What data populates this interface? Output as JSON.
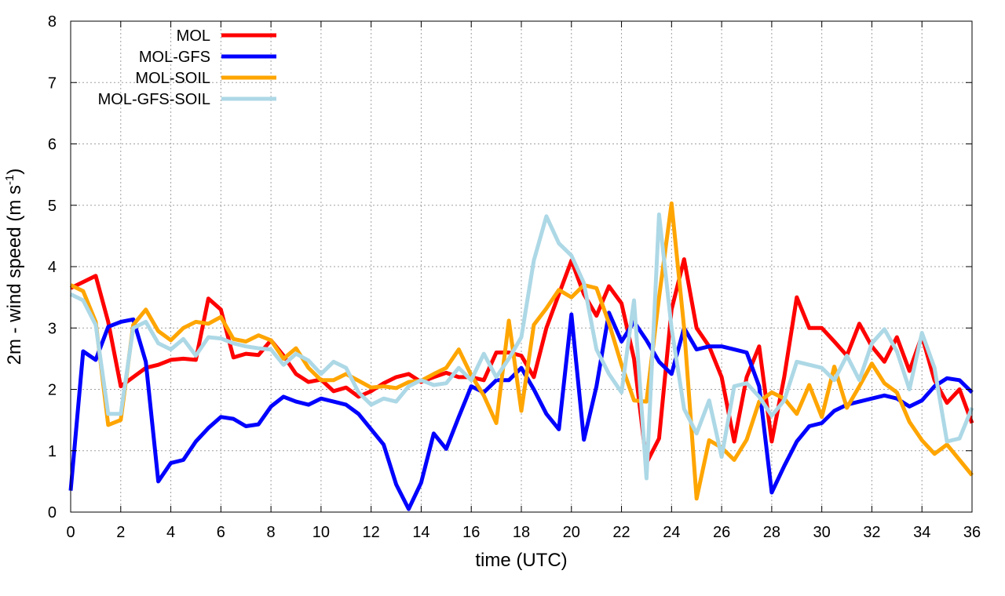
{
  "chart_data": {
    "type": "line",
    "title": "",
    "xlabel": "time (UTC)",
    "ylabel": {
      "prefix": "2m - wind speed  (m s",
      "sup": "-1",
      "suffix": ")"
    },
    "xlim": [
      0,
      36
    ],
    "ylim": [
      0,
      8
    ],
    "xticks": [
      0,
      2,
      4,
      6,
      8,
      10,
      12,
      14,
      16,
      18,
      20,
      22,
      24,
      26,
      28,
      30,
      32,
      34,
      36
    ],
    "yticks": [
      0,
      1,
      2,
      3,
      4,
      5,
      6,
      7,
      8
    ],
    "grid": true,
    "legend_position": "top-left",
    "x": [
      0,
      0.5,
      1,
      1.5,
      2,
      2.5,
      3,
      3.5,
      4,
      4.5,
      5,
      5.5,
      6,
      6.5,
      7,
      7.5,
      8,
      8.5,
      9,
      9.5,
      10,
      10.5,
      11,
      11.5,
      12,
      12.5,
      13,
      13.5,
      14,
      14.5,
      15,
      15.5,
      16,
      16.5,
      17,
      17.5,
      18,
      18.5,
      19,
      19.5,
      20,
      20.5,
      21,
      21.5,
      22,
      22.5,
      23,
      23.5,
      24,
      24.5,
      25,
      25.5,
      26,
      26.5,
      27,
      27.5,
      28,
      28.5,
      29,
      29.5,
      30,
      30.5,
      31,
      31.5,
      32,
      32.5,
      33,
      33.5,
      34,
      34.5,
      35,
      35.5,
      36
    ],
    "series": [
      {
        "name": "MOL",
        "color": "#ff0000",
        "values": [
          3.65,
          3.75,
          3.85,
          3.1,
          2.05,
          2.2,
          2.35,
          2.4,
          2.48,
          2.5,
          2.48,
          3.48,
          3.3,
          2.52,
          2.58,
          2.56,
          2.8,
          2.55,
          2.25,
          2.12,
          2.16,
          1.97,
          2.03,
          1.88,
          1.97,
          2.1,
          2.2,
          2.25,
          2.12,
          2.2,
          2.27,
          2.2,
          2.2,
          2.15,
          2.6,
          2.6,
          2.55,
          2.2,
          3.0,
          3.55,
          4.1,
          3.55,
          3.2,
          3.68,
          3.4,
          2.5,
          0.8,
          1.2,
          3.3,
          4.12,
          3.0,
          2.7,
          2.2,
          1.15,
          2.2,
          2.7,
          1.15,
          2.2,
          3.5,
          3.0,
          3.0,
          2.78,
          2.55,
          3.07,
          2.7,
          2.45,
          2.85,
          2.3,
          2.87,
          2.15,
          1.78,
          2.0,
          1.45
        ]
      },
      {
        "name": "MOL-GFS",
        "color": "#0000ff",
        "values": [
          0.35,
          2.62,
          2.48,
          3.02,
          3.1,
          3.14,
          2.45,
          0.5,
          0.8,
          0.85,
          1.15,
          1.37,
          1.55,
          1.52,
          1.4,
          1.43,
          1.72,
          1.88,
          1.8,
          1.75,
          1.85,
          1.8,
          1.75,
          1.6,
          1.35,
          1.1,
          0.45,
          0.05,
          0.48,
          1.28,
          1.03,
          1.55,
          2.05,
          1.95,
          2.15,
          2.15,
          2.35,
          2.0,
          1.6,
          1.35,
          3.22,
          1.18,
          2.05,
          3.25,
          2.78,
          3.1,
          2.8,
          2.45,
          2.25,
          3.0,
          2.65,
          2.7,
          2.7,
          2.65,
          2.6,
          2.05,
          0.32,
          0.75,
          1.15,
          1.4,
          1.45,
          1.65,
          1.75,
          1.8,
          1.85,
          1.9,
          1.85,
          1.72,
          1.82,
          2.05,
          2.18,
          2.15,
          1.95
        ]
      },
      {
        "name": "MOL-SOIL",
        "color": "#ffa500",
        "values": [
          3.7,
          3.6,
          3.1,
          1.42,
          1.5,
          3.05,
          3.3,
          2.95,
          2.8,
          3.0,
          3.1,
          3.07,
          3.18,
          2.82,
          2.78,
          2.88,
          2.8,
          2.5,
          2.67,
          2.35,
          2.15,
          2.15,
          2.25,
          2.14,
          2.03,
          2.05,
          2.02,
          2.12,
          2.14,
          2.25,
          2.35,
          2.65,
          2.23,
          1.9,
          1.45,
          3.12,
          1.65,
          3.05,
          3.32,
          3.62,
          3.5,
          3.7,
          3.65,
          3.08,
          2.4,
          1.82,
          1.8,
          3.5,
          5.03,
          3.0,
          0.22,
          1.17,
          1.05,
          0.85,
          1.18,
          1.8,
          1.95,
          1.85,
          1.6,
          2.07,
          1.55,
          2.37,
          1.7,
          2.05,
          2.42,
          2.1,
          1.95,
          1.47,
          1.17,
          0.95,
          1.1,
          0.85,
          0.6
        ]
      },
      {
        "name": "MOL-GFS-SOIL",
        "color": "#add8e6",
        "values": [
          3.55,
          3.45,
          3.05,
          1.6,
          1.6,
          3.0,
          3.1,
          2.75,
          2.65,
          2.82,
          2.55,
          2.85,
          2.83,
          2.75,
          2.7,
          2.67,
          2.65,
          2.4,
          2.58,
          2.47,
          2.25,
          2.45,
          2.35,
          1.95,
          1.75,
          1.85,
          1.8,
          2.05,
          2.15,
          2.07,
          2.1,
          2.35,
          2.15,
          2.58,
          2.2,
          2.5,
          2.85,
          4.1,
          4.82,
          4.38,
          4.18,
          3.73,
          2.65,
          2.25,
          1.95,
          3.45,
          0.55,
          4.85,
          3.0,
          1.68,
          1.28,
          1.82,
          0.9,
          2.05,
          2.1,
          1.88,
          1.57,
          1.82,
          2.45,
          2.4,
          2.35,
          2.15,
          2.55,
          2.15,
          2.75,
          2.98,
          2.62,
          2.0,
          2.92,
          2.35,
          1.15,
          1.2,
          1.7
        ]
      }
    ]
  }
}
